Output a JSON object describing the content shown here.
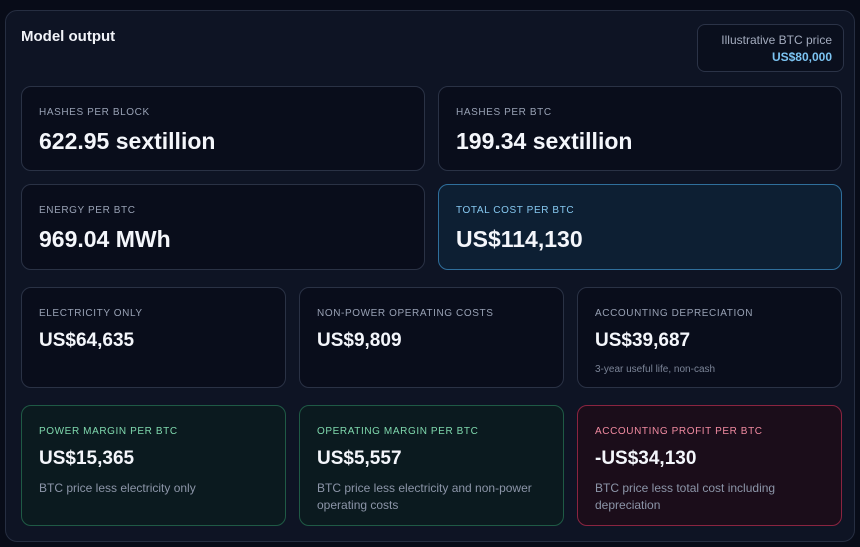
{
  "title": "Model output",
  "price": {
    "label": "Illustrative BTC price",
    "value": "US$80,000"
  },
  "metrics": {
    "hashes_per_block": {
      "label": "HASHES PER BLOCK",
      "value": "622.95 sextillion"
    },
    "hashes_per_btc": {
      "label": "HASHES PER BTC",
      "value": "199.34 sextillion"
    },
    "energy_per_btc": {
      "label": "ENERGY PER BTC",
      "value": "969.04 MWh"
    },
    "total_cost_per_btc": {
      "label": "TOTAL COST PER BTC",
      "value": "US$114,130"
    }
  },
  "costs": {
    "electricity": {
      "label": "ELECTRICITY ONLY",
      "value": "US$64,635"
    },
    "non_power": {
      "label": "NON-POWER OPERATING COSTS",
      "value": "US$9,809"
    },
    "depreciation": {
      "label": "ACCOUNTING DEPRECIATION",
      "value": "US$39,687",
      "note": "3-year useful life, non-cash"
    }
  },
  "margins": {
    "power": {
      "label": "POWER MARGIN PER BTC",
      "value": "US$15,365",
      "note": "BTC price less electricity only"
    },
    "operating": {
      "label": "OPERATING MARGIN PER BTC",
      "value": "US$5,557",
      "note": "BTC price less electricity and non-power operating costs"
    },
    "accounting": {
      "label": "ACCOUNTING PROFIT PER BTC",
      "value": "-US$34,130",
      "note": "BTC price less total cost including depreciation"
    }
  },
  "colors": {
    "background": "#080c18",
    "panel": "#0e1424",
    "accent_blue": "#7cc4f2",
    "positive_green": "#7fd8ad",
    "negative_red": "#f08aa0"
  }
}
